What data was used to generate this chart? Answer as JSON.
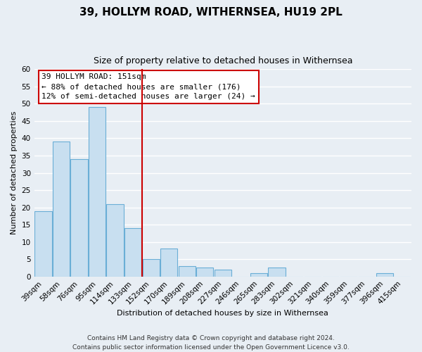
{
  "title": "39, HOLLYM ROAD, WITHERNSEA, HU19 2PL",
  "subtitle": "Size of property relative to detached houses in Withernsea",
  "xlabel": "Distribution of detached houses by size in Withernsea",
  "ylabel": "Number of detached properties",
  "bar_labels": [
    "39sqm",
    "58sqm",
    "76sqm",
    "95sqm",
    "114sqm",
    "133sqm",
    "152sqm",
    "170sqm",
    "189sqm",
    "208sqm",
    "227sqm",
    "246sqm",
    "265sqm",
    "283sqm",
    "302sqm",
    "321sqm",
    "340sqm",
    "359sqm",
    "377sqm",
    "396sqm",
    "415sqm"
  ],
  "bar_values": [
    19,
    39,
    34,
    49,
    21,
    14,
    5,
    8,
    3,
    2.5,
    2,
    0,
    1,
    2.5,
    0,
    0,
    0,
    0,
    0,
    1,
    0
  ],
  "bar_color": "#c8dff0",
  "bar_edge_color": "#6aaed6",
  "highlight_line_color": "#cc0000",
  "ylim": [
    0,
    60
  ],
  "yticks": [
    0,
    5,
    10,
    15,
    20,
    25,
    30,
    35,
    40,
    45,
    50,
    55,
    60
  ],
  "annotation_title": "39 HOLLYM ROAD: 151sqm",
  "annotation_line1": "← 88% of detached houses are smaller (176)",
  "annotation_line2": "12% of semi-detached houses are larger (24) →",
  "annotation_box_color": "#ffffff",
  "annotation_box_edge": "#cc0000",
  "footer_line1": "Contains HM Land Registry data © Crown copyright and database right 2024.",
  "footer_line2": "Contains public sector information licensed under the Open Government Licence v3.0.",
  "background_color": "#e8eef4",
  "grid_color": "#ffffff",
  "title_fontsize": 11,
  "subtitle_fontsize": 9,
  "axis_label_fontsize": 8,
  "tick_fontsize": 7.5,
  "footer_fontsize": 6.5,
  "annotation_fontsize": 8
}
